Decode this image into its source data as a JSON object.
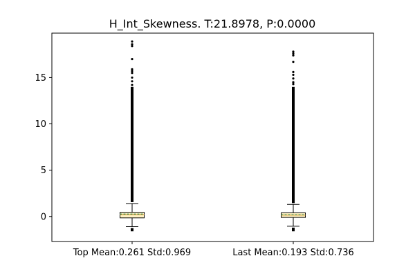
{
  "chart_data": {
    "type": "box",
    "title": "H_Int_Skewness. T:21.8978, P:0.0000",
    "xlabel": "",
    "ylabel": "",
    "categories": [
      "Top Mean:0.261 Std:0.969",
      "Last Mean:0.193 Std:0.736"
    ],
    "ylim": [
      -2.7,
      19.8
    ],
    "yticks": [
      0,
      5,
      10,
      15
    ],
    "grid": false,
    "boxes": [
      {
        "category": "Top Mean:0.261 Std:0.969",
        "q1": -0.15,
        "median": 0.2,
        "mean": 0.261,
        "q3": 0.45,
        "whisker_low": -1.1,
        "whisker_high": 1.4,
        "outlier_low_min": -1.6,
        "outlier_dense_max": 14.0,
        "outlier_points": [
          14.2,
          14.6,
          15.0,
          15.5,
          15.7,
          15.9,
          17.0,
          18.4,
          18.6,
          18.9
        ]
      },
      {
        "category": "Last Mean:0.193 Std:0.736",
        "q1": -0.1,
        "median": 0.15,
        "mean": 0.193,
        "q3": 0.4,
        "whisker_low": -1.05,
        "whisker_high": 1.3,
        "outlier_low_min": -1.6,
        "outlier_dense_max": 14.0,
        "outlier_points": [
          14.3,
          14.5,
          14.9,
          15.3,
          15.6,
          16.7,
          17.4,
          17.6,
          17.8
        ]
      }
    ],
    "colors": {
      "box_fill": "#fff3c4",
      "box_edge": "#000000",
      "median_line": "#e8a33d",
      "mean_line": "#2e8b57",
      "outlier": "#000000"
    }
  }
}
